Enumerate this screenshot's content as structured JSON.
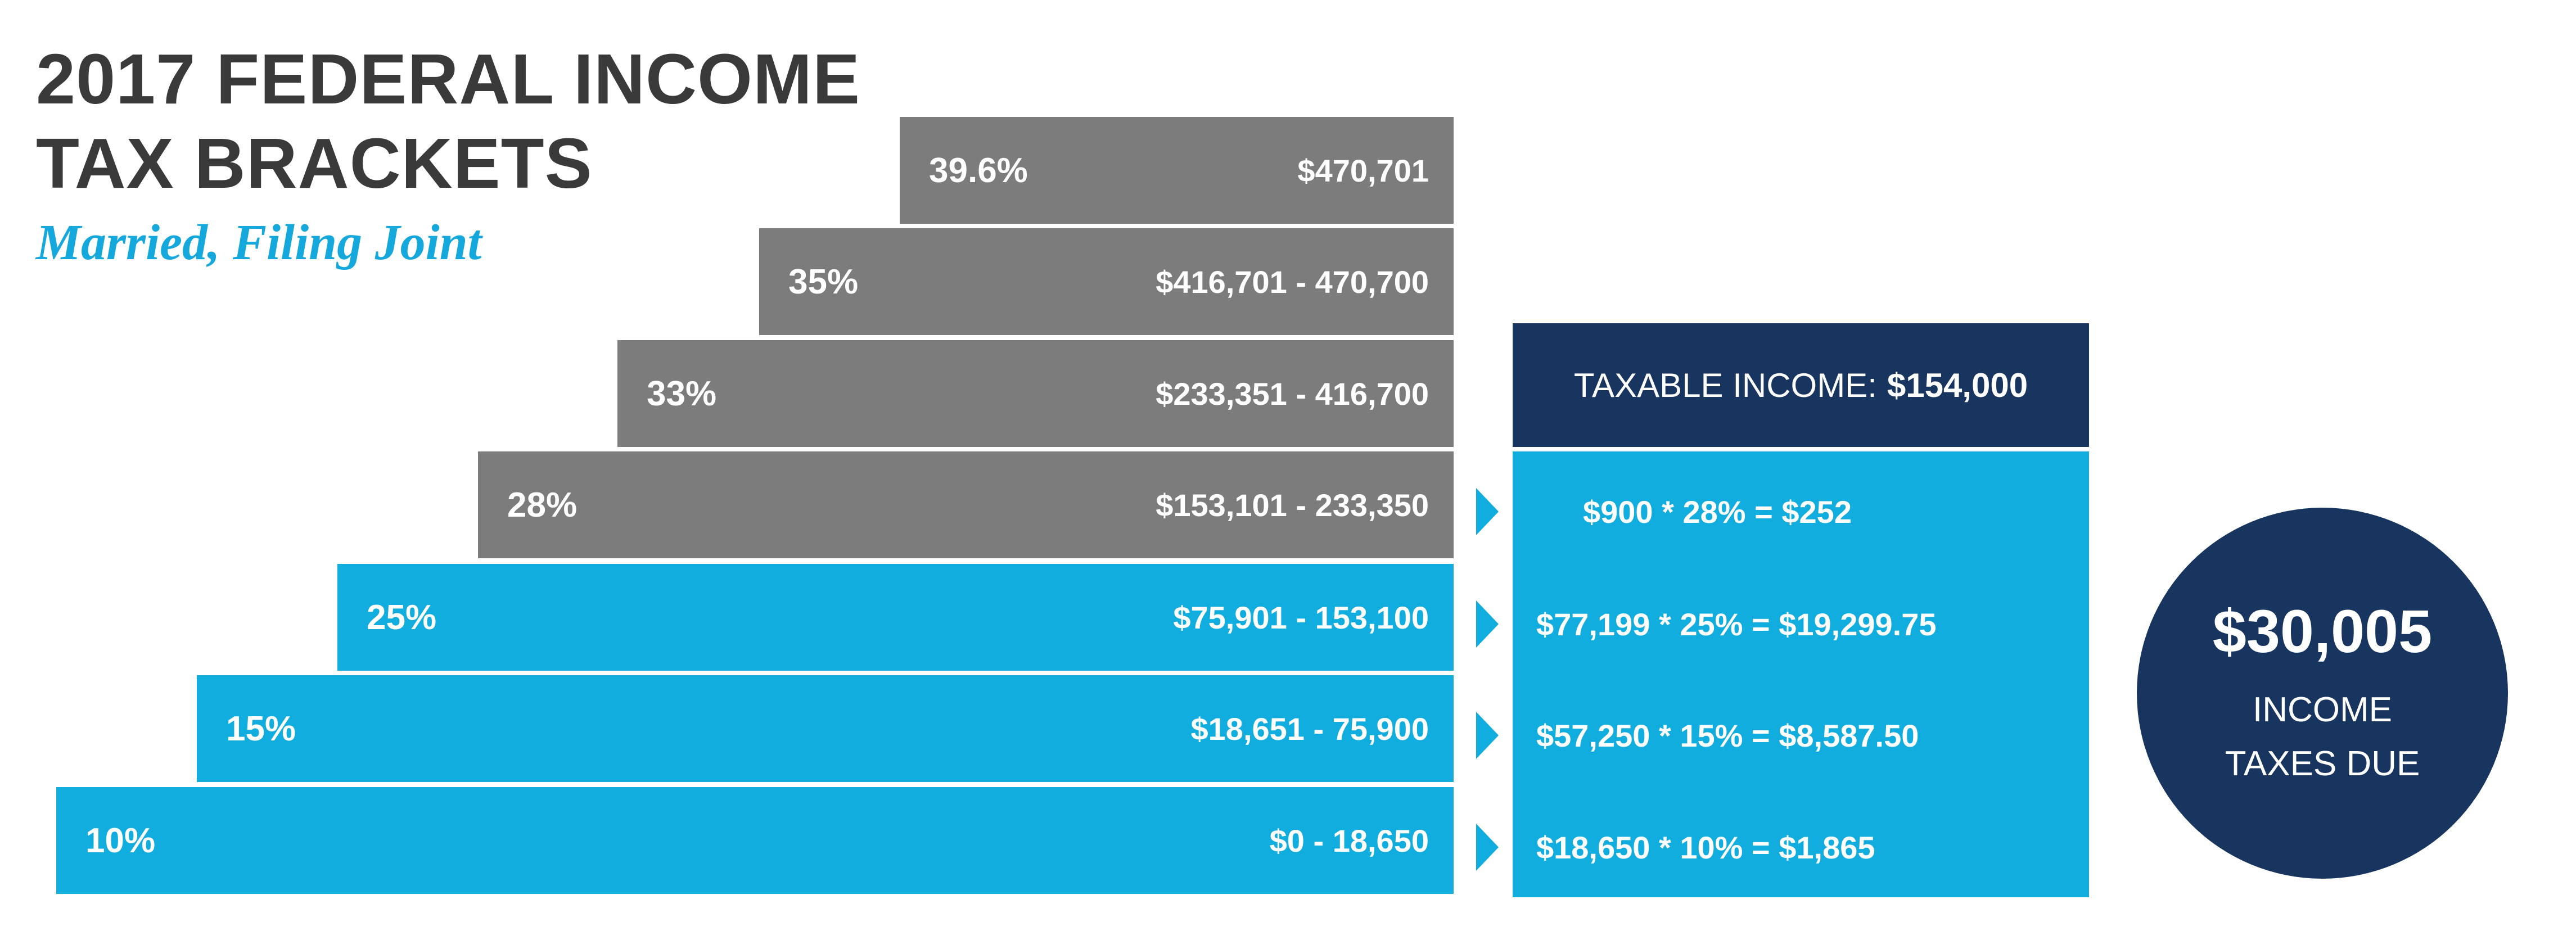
{
  "title": {
    "line1": "2017 FEDERAL INCOME",
    "line2": "TAX BRACKETS"
  },
  "subtitle": "Married, Filing Joint",
  "brackets": [
    {
      "rate": "39.6%",
      "range": "$470,701"
    },
    {
      "rate": "35%",
      "range": "$416,701 - 470,700"
    },
    {
      "rate": "33%",
      "range": "$233,351 - 416,700"
    },
    {
      "rate": "28%",
      "range": "$153,101 - 233,350"
    },
    {
      "rate": "25%",
      "range": "$75,901 - 153,100"
    },
    {
      "rate": "15%",
      "range": "$18,651 - 75,900"
    },
    {
      "rate": "10%",
      "range": "$0 - 18,650"
    }
  ],
  "taxable_income": {
    "label": "TAXABLE INCOME:",
    "amount": "$154,000"
  },
  "calculations": [
    "$900 * 28% = $252",
    "$77,199 * 25% = $19,299.75",
    "$57,250 * 15% = $8,587.50",
    "$18,650 * 10% = $1,865"
  ],
  "total": {
    "amount": "$30,005",
    "label_line1": "INCOME",
    "label_line2": "TAXES DUE"
  },
  "colors": {
    "gray_bracket": "#7b7c7b",
    "blue_bracket": "#12addf",
    "navy": "#17355f",
    "title_text": "#3a3a3a",
    "subtitle_text": "#14a8dc"
  }
}
